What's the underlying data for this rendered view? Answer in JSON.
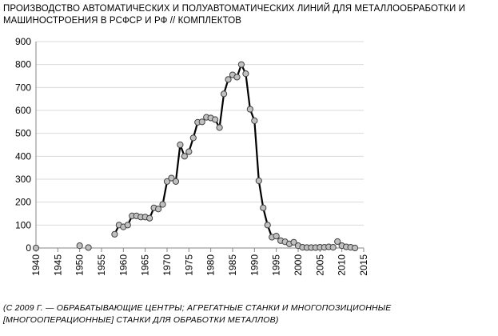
{
  "chart_data": {
    "type": "line",
    "title": "ПРОИЗВОДСТВО АВТОМАТИЧЕСКИХ И ПОЛУАВТОМАТИЧЕСКИХ ЛИНИЙ ДЛЯ МЕТАЛЛООБРАБОТКИ И МАШИНОСТРОЕНИЯ В РСФСР И РФ // КОМПЛЕКТОВ",
    "note": "(С 2009 Г. — ОБРАБАТЫВАЮЩИЕ ЦЕНТРЫ; АГРЕГАТНЫЕ СТАНКИ И МНОГОПОЗИЦИОННЫЕ [МНОГООПЕРАЦИОННЫЕ] СТАНКИ ДЛЯ ОБРАБОТКИ МЕТАЛЛОВ)",
    "xlim": [
      1940,
      2015
    ],
    "ylim": [
      0,
      900
    ],
    "xticks": [
      "1940",
      "1945",
      "1950",
      "1955",
      "1960",
      "1965",
      "1970",
      "1975",
      "1980",
      "1985",
      "1990",
      "1995",
      "2000",
      "2005",
      "2010",
      "2015"
    ],
    "yticks": [
      "0",
      "100",
      "200",
      "300",
      "400",
      "500",
      "600",
      "700",
      "800",
      "900"
    ],
    "grid": "horizontal",
    "colors": {
      "line": "#000000",
      "marker_fill": "#c0c0c0",
      "grid": "#d9d9d9"
    },
    "series": [
      {
        "segments": [
          [
            [
              1940,
              0
            ]
          ],
          [
            [
              1950,
              10
            ]
          ],
          [
            [
              1952,
              2
            ]
          ],
          [
            [
              1958,
              60
            ],
            [
              1959,
              100
            ],
            [
              1960,
              92
            ],
            [
              1961,
              100
            ],
            [
              1962,
              140
            ],
            [
              1963,
              140
            ],
            [
              1964,
              135
            ],
            [
              1965,
              135
            ],
            [
              1966,
              130
            ],
            [
              1967,
              175
            ],
            [
              1968,
              170
            ],
            [
              1969,
              190
            ],
            [
              1970,
              290
            ],
            [
              1971,
              305
            ],
            [
              1972,
              290
            ],
            [
              1973,
              450
            ],
            [
              1974,
              400
            ],
            [
              1975,
              420
            ],
            [
              1976,
              480
            ],
            [
              1977,
              548
            ],
            [
              1978,
              550
            ],
            [
              1979,
              570
            ],
            [
              1980,
              567
            ],
            [
              1981,
              560
            ],
            [
              1982,
              525
            ],
            [
              1983,
              672
            ],
            [
              1984,
              735
            ],
            [
              1985,
              755
            ],
            [
              1986,
              745
            ],
            [
              1987,
              800
            ],
            [
              1988,
              760
            ],
            [
              1989,
              605
            ],
            [
              1990,
              555
            ],
            [
              1991,
              293
            ],
            [
              1992,
              175
            ],
            [
              1993,
              100
            ],
            [
              1994,
              47
            ],
            [
              1995,
              52
            ],
            [
              1996,
              32
            ],
            [
              1997,
              27
            ],
            [
              1998,
              18
            ],
            [
              1999,
              25
            ],
            [
              2000,
              10
            ],
            [
              2001,
              3
            ],
            [
              2002,
              2
            ],
            [
              2003,
              2
            ],
            [
              2004,
              2
            ],
            [
              2005,
              3
            ],
            [
              2006,
              3
            ],
            [
              2007,
              5
            ],
            [
              2008,
              3
            ]
          ],
          [
            [
              2009,
              28
            ],
            [
              2010,
              10
            ],
            [
              2011,
              5
            ],
            [
              2012,
              3
            ],
            [
              2013,
              0
            ]
          ]
        ]
      }
    ]
  }
}
